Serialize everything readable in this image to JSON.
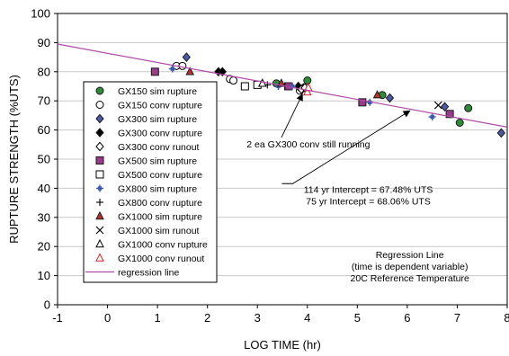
{
  "chart_data": {
    "type": "scatter",
    "title": "",
    "xlabel": "LOG TIME (hr)",
    "ylabel": "RUPTURE STRENGTH (%UTS)",
    "xlim": [
      -1,
      8
    ],
    "ylim": [
      0,
      100
    ],
    "xticks": [
      -1,
      0,
      1,
      2,
      3,
      4,
      5,
      6,
      7,
      8
    ],
    "yticks": [
      0,
      10,
      20,
      30,
      40,
      50,
      60,
      70,
      80,
      90,
      100
    ],
    "grid": "horizontal",
    "legend_position": "left",
    "series": [
      {
        "name": "GX150 sim rupture",
        "marker": "circle",
        "color": "#2e8b3a",
        "filled": true,
        "points": [
          [
            3.38,
            76
          ],
          [
            4.0,
            77
          ],
          [
            5.5,
            72
          ],
          [
            7.05,
            62.5
          ],
          [
            7.22,
            67.5
          ]
        ]
      },
      {
        "name": "GX150 conv rupture",
        "marker": "circle",
        "color": "#000000",
        "filled": false,
        "points": [
          [
            1.38,
            82
          ],
          [
            1.5,
            82
          ],
          [
            2.45,
            77.5
          ],
          [
            2.52,
            77
          ],
          [
            3.85,
            73.5
          ]
        ]
      },
      {
        "name": "GX300 sim rupture",
        "marker": "diamond",
        "color": "#4a5aa8",
        "filled": true,
        "points": [
          [
            1.58,
            85
          ],
          [
            5.65,
            71
          ],
          [
            6.75,
            68
          ],
          [
            7.88,
            59
          ]
        ]
      },
      {
        "name": "GX300 conv rupture",
        "marker": "diamond",
        "color": "#000000",
        "filled": true,
        "points": [
          [
            2.22,
            80
          ],
          [
            2.3,
            80
          ],
          [
            3.82,
            75
          ],
          [
            3.92,
            74.5
          ]
        ]
      },
      {
        "name": "GX300 conv runout",
        "marker": "diamond",
        "color": "#000000",
        "filled": false,
        "points": [
          [
            3.88,
            74
          ],
          [
            3.95,
            74.5
          ]
        ]
      },
      {
        "name": "GX500 sim rupture",
        "marker": "square",
        "color": "#9b3a8c",
        "filled": true,
        "points": [
          [
            0.95,
            80
          ],
          [
            3.62,
            75
          ],
          [
            5.1,
            69.5
          ],
          [
            6.85,
            65.5
          ]
        ]
      },
      {
        "name": "GX500 conv rupture",
        "marker": "square",
        "color": "#000000",
        "filled": false,
        "points": [
          [
            2.75,
            75
          ],
          [
            3.0,
            75.5
          ]
        ]
      },
      {
        "name": "GX800 sim rupture",
        "marker": "plus-box",
        "color": "#3a5ab0",
        "filled": true,
        "points": [
          [
            1.3,
            81
          ],
          [
            3.42,
            75
          ],
          [
            3.7,
            75
          ],
          [
            5.25,
            69.5
          ],
          [
            6.5,
            64.5
          ]
        ]
      },
      {
        "name": "GX800 conv rupture",
        "marker": "plus",
        "color": "#000000",
        "filled": false,
        "points": [
          [
            3.2,
            75.5
          ],
          [
            3.55,
            75
          ]
        ]
      },
      {
        "name": "GX1000 sim rupture",
        "marker": "triangle",
        "color": "#c0302a",
        "filled": true,
        "points": [
          [
            1.65,
            80
          ],
          [
            3.48,
            76
          ],
          [
            5.4,
            72
          ]
        ]
      },
      {
        "name": "GX1000 sim runout",
        "marker": "x",
        "color": "#000000",
        "filled": false,
        "points": [
          [
            6.62,
            68.5
          ]
        ]
      },
      {
        "name": "GX1000 conv rupture",
        "marker": "triangle",
        "color": "#000000",
        "filled": false,
        "points": [
          [
            3.1,
            76
          ]
        ]
      },
      {
        "name": "GX1000 conv runout",
        "marker": "triangle",
        "color": "#d62020",
        "filled": false,
        "points": [
          [
            4.0,
            73
          ],
          [
            4.02,
            74.5
          ]
        ]
      },
      {
        "name": "regression line",
        "marker": "line",
        "color": "#b04aa8",
        "filled": false,
        "points": [
          [
            -1,
            89.5
          ],
          [
            8,
            61
          ]
        ]
      }
    ],
    "annotations": [
      {
        "id": "running",
        "lines": [
          "2 ea GX300 conv still running"
        ],
        "anchor": [
          4.02,
          54
        ],
        "arrow_to": [
          3.9,
          73.5
        ]
      },
      {
        "id": "intercept",
        "lines": [
          "114 yr Intercept = 67.48% UTS",
          "75 yr Intercept = 68.06% UTS"
        ],
        "anchor": [
          5.22,
          38.5
        ],
        "arrow_to": [
          6.05,
          67.5
        ]
      },
      {
        "id": "regression-note",
        "lines": [
          "Regression Line",
          "(time is dependent variable)",
          "20C Reference Temperature"
        ],
        "anchor": [
          6.05,
          16
        ]
      }
    ]
  }
}
